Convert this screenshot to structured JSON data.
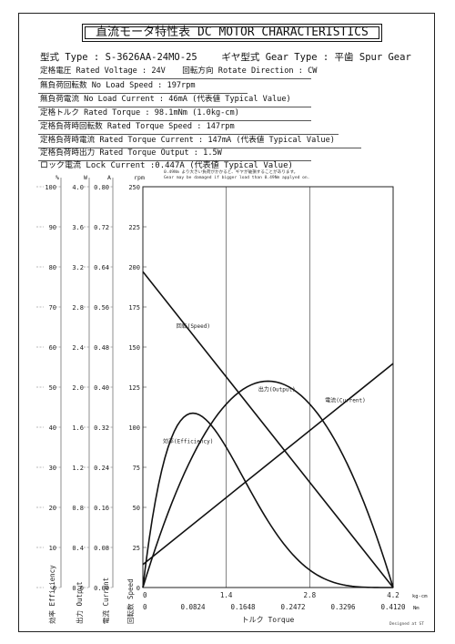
{
  "header": {
    "title": "直流モータ特性表 DC MOTOR CHARACTERISTICS",
    "model": "型式 Type : S-3626AA-24MO-25",
    "gear_type": "ギヤ型式 Gear Type : 平歯 Spur Gear"
  },
  "specs": {
    "rated_voltage": "定格電圧 Rated Voltage : 24V",
    "rotate_direction": "回転方向 Rotate Direction : CW",
    "no_load_speed": "無負荷回転数 No Load Speed : 197rpm",
    "no_load_current": "無負荷電流 No Load Current : 46mA (代表値 Typical Value)",
    "rated_torque": "定格トルク Rated Torque : 98.1mNm (1.0kg-cm)",
    "rated_torque_speed": "定格負荷時回転数 Rated Torque Speed : 147rpm",
    "rated_torque_current": "定格負荷時電流 Rated Torque Current : 147mA (代表値 Typical Value)",
    "rated_torque_output": "定格負荷時出力 Rated Torque Output : 1.5W",
    "lock_current": "ロック電流 Lock Current :0.447A (代表値 Typical Value)"
  },
  "note": {
    "jp": "0.49Nm より大きい負荷がかかると、ギヤが破損することがあります。",
    "en": "Gear may be damaged if bigger load than 0.49Nm applyed on."
  },
  "signature": "Designed at ST",
  "chart_data": {
    "type": "line",
    "title": "",
    "xlabel": "トルク Torque",
    "x_ticks_top": [
      "0",
      "1.4",
      "2.8",
      "4.2"
    ],
    "x_unit_top": "kg-cm",
    "x_ticks_bottom": [
      "0",
      "0.0824",
      "0.1648",
      "0.2472",
      "0.3296",
      "0.4120"
    ],
    "x_unit_bottom": "Nm",
    "xlim": [
      0,
      0.412
    ],
    "axes": {
      "speed": {
        "label": "回転数 Speed",
        "unit": "rpm",
        "ticks": [
          "0",
          "25",
          "50",
          "75",
          "100",
          "125",
          "150",
          "175",
          "200",
          "225",
          "250"
        ],
        "lim": [
          0,
          250
        ]
      },
      "current": {
        "label": "電流 Current",
        "unit": "A",
        "ticks": [
          "0.00",
          "0.08",
          "0.16",
          "0.24",
          "0.32",
          "0.40",
          "0.48",
          "0.56",
          "0.64",
          "0.72",
          "0.80"
        ],
        "lim": [
          0,
          0.8
        ]
      },
      "output": {
        "label": "出力 Output",
        "unit": "W",
        "ticks": [
          "0.0",
          "0.4",
          "0.8",
          "1.2",
          "1.6",
          "2.0",
          "2.4",
          "2.8",
          "3.2",
          "3.6",
          "4.0"
        ],
        "lim": [
          0,
          4.0
        ]
      },
      "efficiency": {
        "label": "効率 Efficiency",
        "unit": "%",
        "ticks": [
          "0",
          "10",
          "20",
          "30",
          "40",
          "50",
          "60",
          "70",
          "80",
          "90",
          "100"
        ],
        "lim": [
          0,
          100
        ]
      }
    },
    "series": [
      {
        "name": "回転(Speed)",
        "axis": "speed",
        "shape": "line",
        "points": [
          [
            0,
            197
          ],
          [
            0.412,
            0
          ]
        ]
      },
      {
        "name": "電流(Current)",
        "axis": "current",
        "shape": "line",
        "points": [
          [
            0,
            0.046
          ],
          [
            0.412,
            0.447
          ]
        ]
      },
      {
        "name": "出力(Output)",
        "axis": "output",
        "shape": "parabola",
        "points": [
          [
            0,
            0
          ],
          [
            0.206,
            2.06
          ],
          [
            0.412,
            0
          ]
        ]
      },
      {
        "name": "効率(Efficiency)",
        "axis": "efficiency",
        "shape": "efficiency",
        "peak": [
          0.0824,
          43.5
        ],
        "points": [
          [
            0,
            0
          ],
          [
            0.412,
            0
          ]
        ]
      }
    ],
    "grid": true,
    "colors": {
      "line": "#111111",
      "grid": "#bbbbbb"
    }
  }
}
